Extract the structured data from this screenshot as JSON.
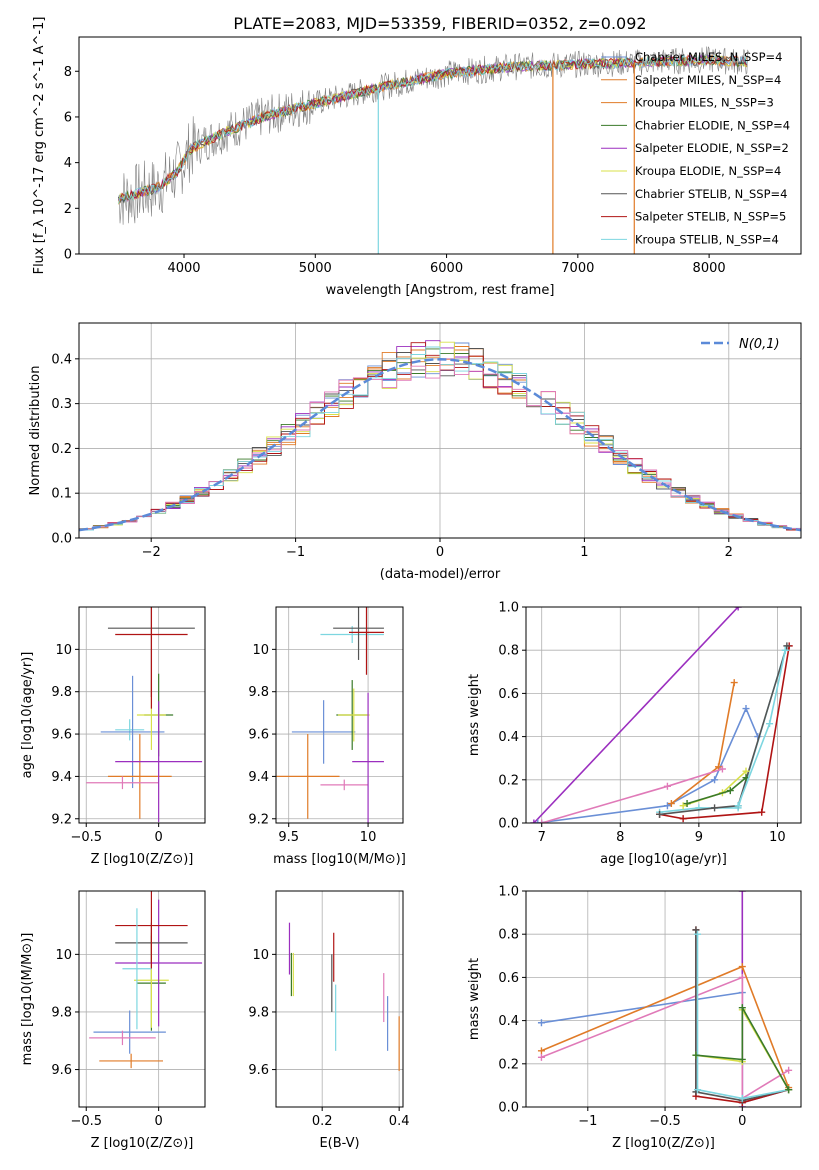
{
  "figure_title": "PLATE=2083, MJD=53359, FIBERID=0352, z=0.092",
  "colors": {
    "Chabrier MILES": "#6a8fd6",
    "Salpeter MILES": "#e07b28",
    "Kroupa MILES": "#e07b28",
    "Chabrier ELODIE": "#3a7a2a",
    "Salpeter ELODIE": "#9b2fbf",
    "Kroupa ELODIE": "#d8e04a",
    "Chabrier STELIB": "#555555",
    "Salpeter STELIB": "#b01414",
    "Kroupa STELIB": "#7dd6e0",
    "pink": "#e07ab8",
    "data": "#808080",
    "gauss": "#5b8ad8"
  },
  "chart_data": [
    {
      "id": "spectrum",
      "type": "line",
      "xlabel": "wavelength [Angstrom, rest frame]",
      "ylabel": "Flux [f_λ 10^-17 erg cm^-2 s^-1 A^-1]",
      "xlim": [
        3200,
        8700
      ],
      "ylim": [
        0,
        9.5
      ],
      "xticks": [
        4000,
        5000,
        6000,
        7000,
        8000
      ],
      "yticks": [
        0,
        2,
        4,
        6,
        8
      ],
      "legend_loc": "right",
      "legend": [
        {
          "label": "Chabrier MILES, N_SSP=4",
          "color": "#6a8fd6"
        },
        {
          "label": "Salpeter MILES, N_SSP=4",
          "color": "#e07b28"
        },
        {
          "label": "Kroupa MILES, N_SSP=3",
          "color": "#e07b28"
        },
        {
          "label": "Chabrier ELODIE, N_SSP=4",
          "color": "#3a7a2a"
        },
        {
          "label": "Salpeter ELODIE, N_SSP=2",
          "color": "#9b2fbf"
        },
        {
          "label": "Kroupa ELODIE, N_SSP=4",
          "color": "#d8e04a"
        },
        {
          "label": "Chabrier STELIB, N_SSP=4",
          "color": "#555555"
        },
        {
          "label": "Salpeter STELIB, N_SSP=5",
          "color": "#b01414"
        },
        {
          "label": "Kroupa STELIB, N_SSP=4",
          "color": "#7dd6e0"
        }
      ],
      "continuum": [
        [
          3500,
          2.4
        ],
        [
          3800,
          2.9
        ],
        [
          3950,
          3.6
        ],
        [
          4050,
          4.6
        ],
        [
          4300,
          5.3
        ],
        [
          4600,
          6.0
        ],
        [
          5000,
          6.6
        ],
        [
          5500,
          7.3
        ],
        [
          6000,
          7.9
        ],
        [
          6500,
          8.2
        ],
        [
          7000,
          8.3
        ],
        [
          7500,
          8.4
        ],
        [
          8000,
          8.5
        ],
        [
          8300,
          8.4
        ]
      ],
      "spikes": [
        [
          5480,
          0
        ],
        [
          6810,
          0
        ],
        [
          7430,
          0
        ]
      ]
    },
    {
      "id": "residuals",
      "type": "histogram",
      "xlabel": "(data-model)/error",
      "ylabel": "Normed distribution",
      "xlim": [
        -2.5,
        2.5
      ],
      "ylim": [
        0,
        0.48
      ],
      "xticks": [
        -2,
        -1,
        0,
        1,
        2
      ],
      "yticks": [
        0.0,
        0.1,
        0.2,
        0.3,
        0.4
      ],
      "legend": [
        {
          "label": "N(0,1)",
          "style": "dashed",
          "color": "#5b8ad8"
        }
      ],
      "gaussian": {
        "mean": 0,
        "sigma": 1
      }
    },
    {
      "id": "Z_age",
      "type": "errorbar",
      "xlabel": "Z [log10(Z/Z⊙)]",
      "ylabel": "age  [log10(age/yr)]",
      "xlim": [
        -0.55,
        0.32
      ],
      "ylim": [
        9.18,
        10.2
      ],
      "xticks": [
        -0.5,
        0.0
      ],
      "yticks": [
        9.2,
        9.4,
        9.6,
        9.8,
        10.0
      ],
      "points": [
        {
          "x": -0.2,
          "xerr": 0.1,
          "y": 9.62,
          "yerr": 0.1,
          "color": "#7dd6e0"
        },
        {
          "x": -0.18,
          "xerr": 0.22,
          "y": 9.61,
          "yerr": 0.53,
          "color": "#6a8fd6"
        },
        {
          "x": -0.13,
          "xerr": 0.22,
          "y": 9.4,
          "yerr": 0.4,
          "color": "#e07b28"
        },
        {
          "x": 0.0,
          "xerr": 0.1,
          "y": 9.69,
          "yerr": 0.39,
          "color": "#3a7a2a"
        },
        {
          "x": -0.05,
          "xerr": 0.1,
          "y": 9.69,
          "yerr": 0.33,
          "color": "#d8e04a"
        },
        {
          "x": -0.25,
          "xerr": 0.25,
          "y": 9.37,
          "yerr": 0.06,
          "color": "#e07ab8"
        },
        {
          "x": 0.0,
          "xerr": 0.3,
          "y": 9.47,
          "yerr": 0.57,
          "color": "#9b2fbf"
        },
        {
          "x": -0.05,
          "xerr": 0.3,
          "y": 10.1,
          "yerr": 0.65,
          "color": "#555555"
        },
        {
          "x": -0.05,
          "xerr": 0.25,
          "y": 10.07,
          "yerr": 0.7,
          "color": "#b01414"
        }
      ]
    },
    {
      "id": "mass_age",
      "type": "errorbar",
      "xlabel": "mass [log10(M/M⊙)]",
      "ylabel": "",
      "xlim": [
        9.42,
        10.22
      ],
      "ylim": [
        9.18,
        10.2
      ],
      "xticks": [
        9.5,
        10.0
      ],
      "yticks": [
        9.2,
        9.4,
        9.6,
        9.8,
        10.0
      ],
      "points": [
        {
          "x": 9.72,
          "xerr": 0.2,
          "y": 9.61,
          "yerr": 0.3,
          "color": "#6a8fd6"
        },
        {
          "x": 9.62,
          "xerr": 0.2,
          "y": 9.4,
          "yerr": 0.4,
          "color": "#e07b28"
        },
        {
          "x": 9.9,
          "xerr": 0.1,
          "y": 9.69,
          "yerr": 0.33,
          "color": "#3a7a2a"
        },
        {
          "x": 9.91,
          "xerr": 0.1,
          "y": 9.69,
          "yerr": 0.25,
          "color": "#d8e04a"
        },
        {
          "x": 9.85,
          "xerr": 0.15,
          "y": 9.36,
          "yerr": 0.05,
          "color": "#e07ab8"
        },
        {
          "x": 10.0,
          "xerr": 0.1,
          "y": 9.47,
          "yerr": 0.65,
          "color": "#9b2fbf"
        },
        {
          "x": 9.9,
          "xerr": 0.2,
          "y": 10.07,
          "yerr": 0.08,
          "color": "#7dd6e0"
        },
        {
          "x": 9.94,
          "xerr": 0.16,
          "y": 10.1,
          "yerr": 0.3,
          "color": "#555555"
        },
        {
          "x": 9.99,
          "xerr": 0.11,
          "y": 10.08,
          "yerr": 0.4,
          "color": "#b01414"
        }
      ]
    },
    {
      "id": "age_weight",
      "type": "line",
      "xlabel": "age  [log10(age/yr)]",
      "ylabel": "mass weight",
      "xlim": [
        6.8,
        10.3
      ],
      "ylim": [
        0,
        1.0
      ],
      "xticks": [
        7,
        8,
        9,
        10
      ],
      "yticks": [
        0.0,
        0.2,
        0.4,
        0.6,
        0.8,
        1.0
      ],
      "series": [
        {
          "color": "#9b2fbf",
          "x": [
            6.9,
            9.5
          ],
          "y": [
            0.0,
            1.0
          ]
        },
        {
          "color": "#6a8fd6",
          "x": [
            6.95,
            8.6,
            9.2,
            9.6,
            9.75
          ],
          "y": [
            0.0,
            0.08,
            0.2,
            0.53,
            0.4
          ]
        },
        {
          "color": "#e07b28",
          "x": [
            8.65,
            9.25,
            9.45
          ],
          "y": [
            0.09,
            0.26,
            0.65
          ]
        },
        {
          "color": "#e07ab8",
          "x": [
            7.0,
            8.6,
            9.3
          ],
          "y": [
            0.0,
            0.17,
            0.25
          ]
        },
        {
          "color": "#b01414",
          "x": [
            8.5,
            8.8,
            9.8,
            10.15
          ],
          "y": [
            0.04,
            0.02,
            0.05,
            0.82
          ]
        },
        {
          "color": "#7dd6e0",
          "x": [
            8.5,
            9.0,
            9.5,
            10.1
          ],
          "y": [
            0.05,
            0.07,
            0.07,
            0.8
          ]
        },
        {
          "color": "#555555",
          "x": [
            8.5,
            9.2,
            9.5,
            10.12
          ],
          "y": [
            0.04,
            0.07,
            0.08,
            0.82
          ]
        },
        {
          "color": "#d8e04a",
          "x": [
            8.8,
            9.3,
            9.6
          ],
          "y": [
            0.08,
            0.14,
            0.24
          ]
        },
        {
          "color": "#3a7a2a",
          "x": [
            8.85,
            9.4,
            9.6
          ],
          "y": [
            0.09,
            0.15,
            0.21
          ]
        },
        {
          "color": "#7dd6e0",
          "x": [
            9.5,
            9.9,
            10.1
          ],
          "y": [
            0.08,
            0.46,
            0.8
          ]
        }
      ]
    },
    {
      "id": "Z_mass",
      "type": "errorbar",
      "xlabel": "Z [log10(Z/Z⊙)]",
      "ylabel": "mass [log10(M/M⊙)]",
      "xlim": [
        -0.55,
        0.32
      ],
      "ylim": [
        9.47,
        10.22
      ],
      "xticks": [
        -0.5,
        0.0
      ],
      "yticks": [
        9.6,
        9.8,
        10.0
      ],
      "points": [
        {
          "x": -0.2,
          "xerr": 0.25,
          "y": 9.73,
          "yerr": 0.15,
          "color": "#6a8fd6"
        },
        {
          "x": -0.19,
          "xerr": 0.22,
          "y": 9.63,
          "yerr": 0.05,
          "color": "#e07b28"
        },
        {
          "x": -0.25,
          "xerr": 0.23,
          "y": 9.71,
          "yerr": 0.05,
          "color": "#e07ab8"
        },
        {
          "x": -0.05,
          "xerr": 0.1,
          "y": 9.9,
          "yerr": 0.33,
          "color": "#3a7a2a"
        },
        {
          "x": -0.05,
          "xerr": 0.12,
          "y": 9.91,
          "yerr": 0.33,
          "color": "#d8e04a"
        },
        {
          "x": 0.0,
          "xerr": 0.3,
          "y": 9.97,
          "yerr": 0.44,
          "color": "#9b2fbf"
        },
        {
          "x": -0.05,
          "xerr": 0.25,
          "y": 10.04,
          "yerr": 0.14,
          "color": "#555555"
        },
        {
          "x": -0.05,
          "xerr": 0.25,
          "y": 10.1,
          "yerr": 0.3,
          "color": "#b01414"
        },
        {
          "x": -0.15,
          "xerr": 0.1,
          "y": 9.95,
          "yerr": 0.42,
          "color": "#7dd6e0"
        }
      ]
    },
    {
      "id": "ebv_mass",
      "type": "errorbar",
      "xlabel": "E(B-V)",
      "ylabel": "",
      "xlim": [
        0.08,
        0.41
      ],
      "ylim": [
        9.47,
        10.22
      ],
      "xticks": [
        0.2,
        0.4
      ],
      "yticks": [
        9.6,
        9.8,
        10.0
      ],
      "points": [
        {
          "x": 0.115,
          "yerr": 0.18,
          "y": 10.02,
          "color": "#9b2fbf"
        },
        {
          "x": 0.12,
          "yerr": 0.15,
          "y": 9.93,
          "color": "#3a7a2a"
        },
        {
          "x": 0.125,
          "yerr": 0.15,
          "y": 9.93,
          "color": "#d8e04a"
        },
        {
          "x": 0.225,
          "yerr": 0.2,
          "y": 9.9,
          "color": "#555555"
        },
        {
          "x": 0.23,
          "yerr": 0.17,
          "y": 9.99,
          "color": "#b01414"
        },
        {
          "x": 0.235,
          "yerr": 0.23,
          "y": 9.78,
          "color": "#7dd6e0"
        },
        {
          "x": 0.36,
          "yerr": 0.17,
          "y": 9.85,
          "color": "#e07ab8"
        },
        {
          "x": 0.37,
          "yerr": 0.19,
          "y": 9.76,
          "color": "#6a8fd6"
        },
        {
          "x": 0.4,
          "yerr": 0.19,
          "y": 9.69,
          "color": "#e07b28"
        }
      ]
    },
    {
      "id": "Z_weight",
      "type": "line",
      "xlabel": "Z [log10(Z/Z⊙)]",
      "ylabel": "mass weight",
      "xlim": [
        -1.4,
        0.38
      ],
      "ylim": [
        0,
        1.0
      ],
      "xticks": [
        -1.0,
        -0.5,
        0.0
      ],
      "yticks": [
        0.0,
        0.2,
        0.4,
        0.6,
        0.8,
        1.0
      ],
      "series": [
        {
          "color": "#9b2fbf",
          "x": [
            0.0,
            0.0
          ],
          "y": [
            0.0,
            1.0
          ]
        },
        {
          "color": "#6a8fd6",
          "x": [
            -1.3,
            0.0,
            0.0,
            0.3
          ],
          "y": [
            0.39,
            0.53,
            0.02,
            0.08
          ]
        },
        {
          "color": "#e07b28",
          "x": [
            -1.3,
            0.0,
            0.3
          ],
          "y": [
            0.26,
            0.65,
            0.09
          ]
        },
        {
          "color": "#e07ab8",
          "x": [
            -1.3,
            0.0,
            0.0,
            0.3
          ],
          "y": [
            0.23,
            0.6,
            0.04,
            0.17
          ]
        },
        {
          "color": "#b01414",
          "x": [
            -0.3,
            -0.3,
            0.0,
            0.3
          ],
          "y": [
            0.82,
            0.05,
            0.02,
            0.08
          ]
        },
        {
          "color": "#555555",
          "x": [
            -0.3,
            -0.3,
            0.0,
            0.3
          ],
          "y": [
            0.82,
            0.07,
            0.03,
            0.08
          ]
        },
        {
          "color": "#7dd6e0",
          "x": [
            -0.29,
            -0.29,
            0.0,
            0.3
          ],
          "y": [
            0.8,
            0.08,
            0.04,
            0.08
          ]
        },
        {
          "color": "#d8e04a",
          "x": [
            -0.3,
            0.0,
            0.0,
            0.3
          ],
          "y": [
            0.24,
            0.21,
            0.45,
            0.08
          ]
        },
        {
          "color": "#3a7a2a",
          "x": [
            -0.3,
            0.0,
            0.0,
            0.3
          ],
          "y": [
            0.24,
            0.22,
            0.46,
            0.08
          ]
        }
      ]
    }
  ]
}
